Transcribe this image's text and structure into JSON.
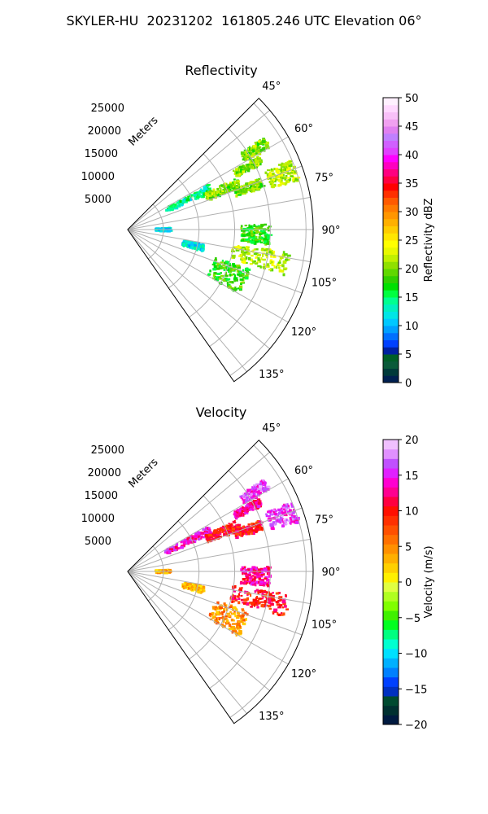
{
  "figure": {
    "title": "SKYLER-HU  20231202  161805.246 UTC Elevation 06°"
  },
  "chart_data": [
    {
      "type": "heatmap",
      "projection": "polar-sector",
      "title": "Reflectivity",
      "radial_axis_label": "Meters",
      "radial_ticks": [
        5000,
        10000,
        15000,
        20000,
        25000
      ],
      "radial_tick_labels": [
        "5000",
        "10000",
        "15000",
        "20000",
        "25000"
      ],
      "radial_range": [
        0,
        26000
      ],
      "azimuth_range_deg": [
        45,
        145
      ],
      "azimuth_ticks_deg": [
        45,
        60,
        75,
        90,
        105,
        120,
        135
      ],
      "azimuth_tick_labels": [
        "45°",
        "60°",
        "75°",
        "90°",
        "105°",
        "120°",
        "135°"
      ],
      "grid": true,
      "colorbar": {
        "label": "Reflectivity dBZ",
        "range": [
          0,
          50
        ],
        "ticks": [
          0,
          5,
          10,
          15,
          20,
          25,
          30,
          35,
          40,
          45,
          50
        ],
        "tick_labels": [
          "0",
          "5",
          "10",
          "15",
          "20",
          "25",
          "30",
          "35",
          "40",
          "45",
          "50"
        ],
        "colors": [
          "#002050",
          "#003a3a",
          "#0a5a3a",
          "#005e28",
          "#0020a0",
          "#0040ff",
          "#0070ff",
          "#00a0ff",
          "#00c8ff",
          "#00e6e6",
          "#00f0c0",
          "#00ff90",
          "#00ff40",
          "#00e000",
          "#30d000",
          "#60d800",
          "#90e000",
          "#c0f000",
          "#e8f800",
          "#ffff00",
          "#ffe600",
          "#ffcc00",
          "#ffb000",
          "#ff9600",
          "#ff7a00",
          "#ff5a00",
          "#ff3000",
          "#ff0000",
          "#ff0040",
          "#ff0080",
          "#ff00c0",
          "#ff00ff",
          "#e040ff",
          "#d060ff",
          "#c080ff",
          "#e080f0",
          "#f0a0f0",
          "#f8c0f8",
          "#ffd8ff",
          "#fff0ff"
        ]
      },
      "echo_regions": [
        {
          "az": [
            61,
            66
          ],
          "range": [
            6000,
            13000
          ],
          "value": 14
        },
        {
          "az": [
            65,
            70
          ],
          "range": [
            12000,
            17000
          ],
          "value": 20
        },
        {
          "az": [
            69,
            73
          ],
          "range": [
            16000,
            20000
          ],
          "value": 20
        },
        {
          "az": [
            61,
            64
          ],
          "range": [
            17000,
            21000
          ],
          "value": 20
        },
        {
          "az": [
            56,
            60
          ],
          "range": [
            19000,
            23000
          ],
          "value": 20
        },
        {
          "az": [
            67,
            74
          ],
          "range": [
            21000,
            25000
          ],
          "value": 22
        },
        {
          "az": [
            88,
            96
          ],
          "range": [
            16000,
            20000
          ],
          "value": 18
        },
        {
          "az": [
            98,
            106
          ],
          "range": [
            15000,
            23000
          ],
          "value": 22
        },
        {
          "az": [
            108,
            120
          ],
          "range": [
            13000,
            18000
          ],
          "value": 18
        },
        {
          "az": [
            101,
            106
          ],
          "range": [
            8000,
            11000
          ],
          "value": 12
        },
        {
          "az": [
            88,
            92
          ],
          "range": [
            4000,
            6000
          ],
          "value": 12
        }
      ]
    },
    {
      "type": "heatmap",
      "projection": "polar-sector",
      "title": "Velocity",
      "radial_axis_label": "Meters",
      "radial_ticks": [
        5000,
        10000,
        15000,
        20000,
        25000
      ],
      "radial_tick_labels": [
        "5000",
        "10000",
        "15000",
        "20000",
        "25000"
      ],
      "radial_range": [
        0,
        26000
      ],
      "azimuth_range_deg": [
        45,
        145
      ],
      "azimuth_ticks_deg": [
        45,
        60,
        75,
        90,
        105,
        120,
        135
      ],
      "azimuth_tick_labels": [
        "45°",
        "60°",
        "75°",
        "90°",
        "105°",
        "120°",
        "135°"
      ],
      "grid": true,
      "colorbar": {
        "label": "Velocity (m/s)",
        "range": [
          -20,
          20
        ],
        "ticks": [
          -20,
          -15,
          -10,
          -5,
          0,
          5,
          10,
          15,
          20
        ],
        "tick_labels": [
          "−20",
          "−15",
          "−10",
          "−5",
          "0",
          "5",
          "10",
          "15",
          "20"
        ],
        "colors": [
          "#001a40",
          "#003030",
          "#004a30",
          "#0030c0",
          "#0040ff",
          "#0080ff",
          "#00b0ff",
          "#00e0ff",
          "#00ffd0",
          "#00ff80",
          "#00ff20",
          "#40f000",
          "#80ff00",
          "#b0ff20",
          "#e0ff40",
          "#fff000",
          "#ffd000",
          "#ffb000",
          "#ff9000",
          "#ff7000",
          "#ff5000",
          "#ff3000",
          "#ff1000",
          "#ff0040",
          "#ff0090",
          "#ff00d0",
          "#e020ff",
          "#c050ff",
          "#e090ff",
          "#f0c0ff"
        ]
      },
      "echo_regions": [
        {
          "az": [
            61,
            66
          ],
          "range": [
            6000,
            13000
          ],
          "value": 14
        },
        {
          "az": [
            65,
            70
          ],
          "range": [
            12000,
            17000
          ],
          "value": 10
        },
        {
          "az": [
            69,
            73
          ],
          "range": [
            16000,
            20000
          ],
          "value": 10
        },
        {
          "az": [
            61,
            64
          ],
          "range": [
            17000,
            21000
          ],
          "value": 13
        },
        {
          "az": [
            56,
            60
          ],
          "range": [
            19000,
            23000
          ],
          "value": 16
        },
        {
          "az": [
            67,
            74
          ],
          "range": [
            21000,
            25000
          ],
          "value": 16
        },
        {
          "az": [
            88,
            96
          ],
          "range": [
            16000,
            20000
          ],
          "value": 13
        },
        {
          "az": [
            98,
            106
          ],
          "range": [
            15000,
            23000
          ],
          "value": 10
        },
        {
          "az": [
            108,
            120
          ],
          "range": [
            13000,
            18000
          ],
          "value": 5
        },
        {
          "az": [
            101,
            106
          ],
          "range": [
            8000,
            11000
          ],
          "value": 3
        },
        {
          "az": [
            88,
            92
          ],
          "range": [
            4000,
            6000
          ],
          "value": 3
        }
      ]
    }
  ]
}
